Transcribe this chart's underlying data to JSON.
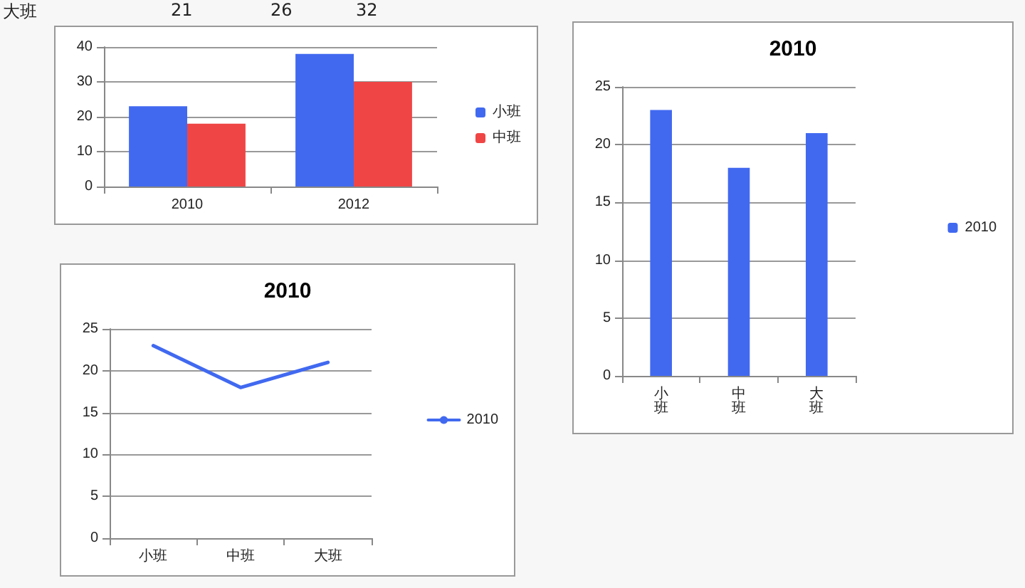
{
  "chart_data": [
    {
      "type": "bar",
      "categories": [
        "2010",
        "2012"
      ],
      "series": [
        {
          "name": "小班",
          "color": "#4169f0",
          "values": [
            23,
            38
          ]
        },
        {
          "name": "中班",
          "color": "#f04545",
          "values": [
            18,
            30
          ]
        }
      ],
      "ylim": [
        0,
        40
      ],
      "yticks": [
        0,
        10,
        20,
        30,
        40
      ],
      "grid": "y",
      "legend": "right",
      "annotations": [
        "大班",
        "21",
        "26",
        "32"
      ]
    },
    {
      "type": "bar",
      "title": "2010",
      "categories": [
        "小班",
        "中班",
        "大班"
      ],
      "series": [
        {
          "name": "2010",
          "color": "#4169f0",
          "values": [
            23,
            18,
            21
          ]
        }
      ],
      "ylim": [
        0,
        25
      ],
      "yticks": [
        0,
        5,
        10,
        15,
        20,
        25
      ],
      "grid": "y",
      "legend": "right"
    },
    {
      "type": "line",
      "title": "2010",
      "categories": [
        "小班",
        "中班",
        "大班"
      ],
      "series": [
        {
          "name": "2010",
          "color": "#4169f0",
          "values": [
            23,
            18,
            21
          ]
        }
      ],
      "ylim": [
        0,
        25
      ],
      "yticks": [
        0,
        5,
        10,
        15,
        20,
        25
      ],
      "grid": "y",
      "legend": "right",
      "marker": "none",
      "line_style": "solid"
    }
  ]
}
